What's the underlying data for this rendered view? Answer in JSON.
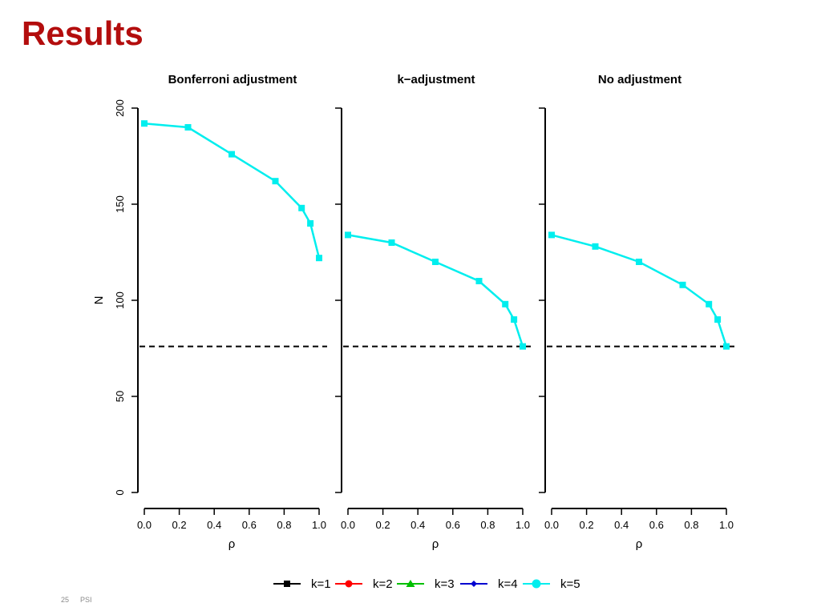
{
  "slide": {
    "title": "Results",
    "page_number": "25",
    "footer_text": "PSI"
  },
  "colors": {
    "title": "#b30d0d",
    "k1": "#000000",
    "k2": "#ff0000",
    "k3": "#00c000",
    "k4": "#0000d0",
    "k5": "#00eeee"
  },
  "chart_data": [
    {
      "type": "line",
      "title": "Bonferroni adjustment",
      "xlabel": "ρ",
      "ylabel": "N",
      "xlim": [
        0,
        1
      ],
      "ylim": [
        0,
        200
      ],
      "xticks": [
        "0.0",
        "0.2",
        "0.4",
        "0.6",
        "0.8",
        "1.0"
      ],
      "yticks": [
        "0",
        "50",
        "100",
        "150",
        "200"
      ],
      "reference_line": {
        "y": 76,
        "style": "dashed"
      },
      "series": [
        {
          "name": "k=5",
          "x": [
            0.0,
            0.25,
            0.5,
            0.75,
            0.9,
            0.95,
            1.0
          ],
          "y": [
            192,
            190,
            176,
            162,
            148,
            140,
            122
          ]
        }
      ]
    },
    {
      "type": "line",
      "title": "k−adjustment",
      "xlabel": "ρ",
      "ylabel": "",
      "xlim": [
        0,
        1
      ],
      "ylim": [
        0,
        200
      ],
      "xticks": [
        "0.0",
        "0.2",
        "0.4",
        "0.6",
        "0.8",
        "1.0"
      ],
      "yticks": [],
      "reference_line": {
        "y": 76,
        "style": "dashed"
      },
      "series": [
        {
          "name": "k=5",
          "x": [
            0.0,
            0.25,
            0.5,
            0.75,
            0.9,
            0.95,
            1.0
          ],
          "y": [
            134,
            130,
            120,
            110,
            98,
            90,
            76
          ]
        }
      ]
    },
    {
      "type": "line",
      "title": "No adjustment",
      "xlabel": "ρ",
      "ylabel": "",
      "xlim": [
        0,
        1
      ],
      "ylim": [
        0,
        200
      ],
      "xticks": [
        "0.0",
        "0.2",
        "0.4",
        "0.6",
        "0.8",
        "1.0"
      ],
      "yticks": [],
      "reference_line": {
        "y": 76,
        "style": "dashed"
      },
      "series": [
        {
          "name": "k=5",
          "x": [
            0.0,
            0.25,
            0.5,
            0.75,
            0.9,
            0.95,
            1.0
          ],
          "y": [
            134,
            128,
            120,
            108,
            98,
            90,
            76
          ]
        }
      ]
    }
  ],
  "legend": {
    "placement": "bottom",
    "items": [
      {
        "label": "k=1",
        "color": "#000000",
        "marker": "square"
      },
      {
        "label": "k=2",
        "color": "#ff0000",
        "marker": "circle"
      },
      {
        "label": "k=3",
        "color": "#00c000",
        "marker": "triangle"
      },
      {
        "label": "k=4",
        "color": "#0000d0",
        "marker": "diamond"
      },
      {
        "label": "k=5",
        "color": "#00eeee",
        "marker": "circle"
      }
    ]
  }
}
